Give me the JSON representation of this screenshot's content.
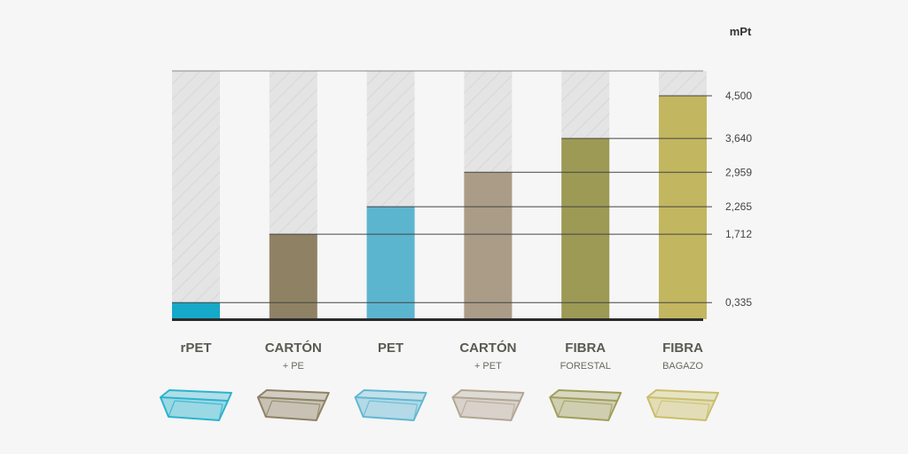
{
  "chart_data": {
    "type": "bar",
    "unit": "mPt",
    "ylim": [
      0,
      5.0
    ],
    "categories": [
      {
        "label": "rPET",
        "sublabel": "",
        "color": "#17a9c9",
        "tray_color": "#2bb3cf"
      },
      {
        "label": "CARTÓN",
        "sublabel": "+ PE",
        "color": "#8f8264",
        "tray_color": "#8f8264"
      },
      {
        "label": "PET",
        "sublabel": "",
        "color": "#5cb5cf",
        "tray_color": "#62b7d2"
      },
      {
        "label": "CARTÓN",
        "sublabel": "+ PET",
        "color": "#ab9c88",
        "tray_color": "#b3a694"
      },
      {
        "label": "FIBRA",
        "sublabel": "FORESTAL",
        "color": "#9d9a56",
        "tray_color": "#a09e5c"
      },
      {
        "label": "FIBRA",
        "sublabel": "BAGAZO",
        "color": "#c2b660",
        "tray_color": "#c9bf6a"
      }
    ],
    "values": [
      0.335,
      1.712,
      2.265,
      2.959,
      3.64,
      4.5
    ],
    "tick_labels": [
      "0,335",
      "1,712",
      "2,265",
      "2,959",
      "3,640",
      "4,500"
    ],
    "grid": false,
    "legend": "none"
  }
}
